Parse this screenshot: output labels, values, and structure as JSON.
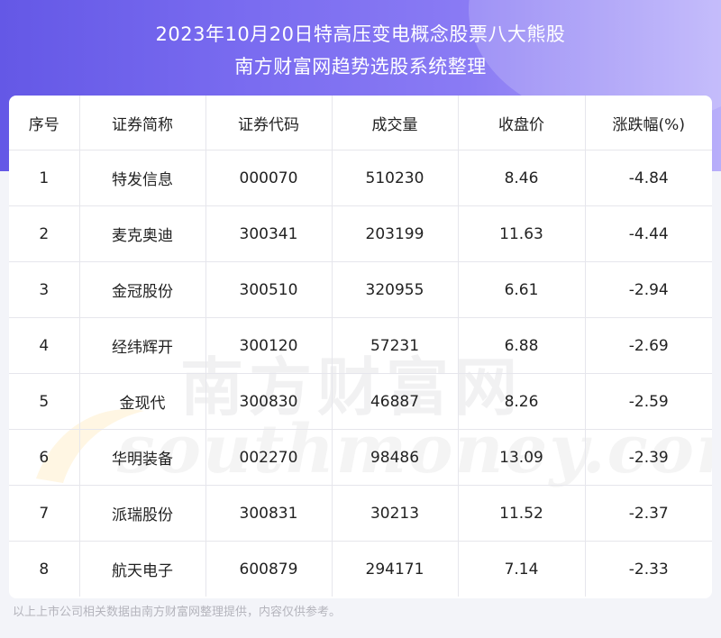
{
  "header": {
    "title_line1": "2023年10月20日特高压变电概念股票八大熊股",
    "title_line2": "南方财富网趋势选股系统整理"
  },
  "table": {
    "columns": [
      "序号",
      "证券简称",
      "证券代码",
      "成交量",
      "收盘价",
      "涨跌幅(%)"
    ],
    "rows": [
      [
        "1",
        "特发信息",
        "000070",
        "510230",
        "8.46",
        "-4.84"
      ],
      [
        "2",
        "麦克奥迪",
        "300341",
        "203199",
        "11.63",
        "-4.44"
      ],
      [
        "3",
        "金冠股份",
        "300510",
        "320955",
        "6.61",
        "-2.94"
      ],
      [
        "4",
        "经纬辉开",
        "300120",
        "57231",
        "6.88",
        "-2.69"
      ],
      [
        "5",
        "金现代",
        "300830",
        "46887",
        "8.26",
        "-2.59"
      ],
      [
        "6",
        "华明装备",
        "002270",
        "98486",
        "13.09",
        "-2.39"
      ],
      [
        "7",
        "派瑞股份",
        "300831",
        "30213",
        "11.52",
        "-2.37"
      ],
      [
        "8",
        "航天电子",
        "600879",
        "294171",
        "7.14",
        "-2.33"
      ]
    ]
  },
  "watermark": {
    "cn": "南方财富网",
    "en": "southmoney.com"
  },
  "footer": {
    "note": "以上上市公司相关数据由南方财富网整理提供，内容仅供参考。"
  },
  "colors": {
    "header_gradient_start": "#6458e6",
    "header_gradient_end": "#b8aefa",
    "page_background": "#f3f4f9",
    "card_background": "#ffffff",
    "text": "#222222",
    "footer_text": "#b4b4bc"
  }
}
